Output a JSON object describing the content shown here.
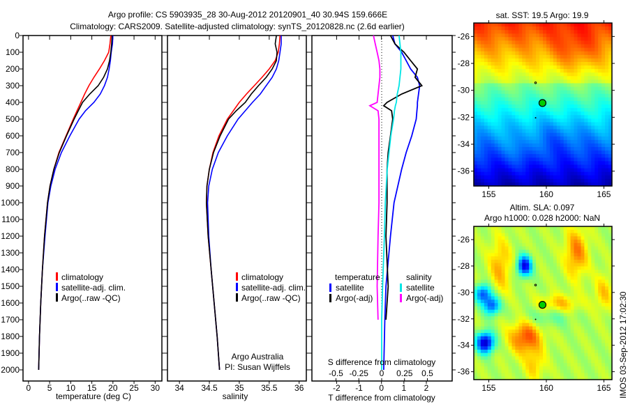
{
  "title_line1": "Argo profile: CS 5903935_28 30-Aug-2012 20120901_40 30.94S 159.666E",
  "title_line2": "Climatology: CARS2009. Satellite-adjusted climatology: synTS_20120828.nc (2.6d earlier)",
  "colors": {
    "climatology": "#ff0000",
    "satellite": "#0000ff",
    "argo": "#000000",
    "sal_satellite": "#00e5e5",
    "sal_argo": "#ff00ff"
  },
  "chart_data": [
    {
      "type": "line",
      "name": "temperature-profile",
      "xlabel": "temperature (deg C)",
      "ylabel": "",
      "xlim": [
        -1.3,
        31.6
      ],
      "ylim": [
        2065,
        0
      ],
      "xticks": [
        0,
        5,
        10,
        15,
        20,
        25,
        30
      ],
      "yticks": [
        0,
        100,
        200,
        300,
        400,
        500,
        600,
        700,
        800,
        900,
        1000,
        1100,
        1200,
        1300,
        1400,
        1500,
        1600,
        1700,
        1800,
        1900,
        2000
      ],
      "depth": [
        0,
        50,
        100,
        150,
        200,
        250,
        300,
        350,
        400,
        450,
        500,
        600,
        700,
        800,
        900,
        1000,
        1200,
        1400,
        1600,
        1800,
        2000
      ],
      "series": [
        {
          "name": "climatology",
          "color": "#ff0000",
          "values": [
            19.5,
            19.3,
            19,
            18,
            16.8,
            15.5,
            14.3,
            13.3,
            12.4,
            11.5,
            10.6,
            8.9,
            7.2,
            6,
            5.1,
            4.5,
            3.8,
            3.3,
            2.9,
            2.6,
            2.4
          ]
        },
        {
          "name": "satellite-adj. clim.",
          "color": "#0000ff",
          "values": [
            20,
            19.9,
            19.6,
            19.4,
            19.1,
            18.7,
            18,
            17,
            15.5,
            13.5,
            12,
            9.8,
            7.8,
            6.3,
            5.3,
            4.6,
            3.9,
            3.3,
            2.9,
            2.6,
            2.4
          ]
        },
        {
          "name": "Argo(..raw -QC)",
          "color": "#000000",
          "values": [
            19.8,
            19.7,
            19.5,
            19.2,
            18.7,
            17.8,
            16.5,
            14.5,
            12.8,
            11.8,
            10.8,
            9,
            7.3,
            6,
            5.1,
            4.5,
            3.8,
            3.3,
            2.9,
            2.6,
            2.4
          ]
        }
      ]
    },
    {
      "type": "line",
      "name": "salinity-profile",
      "xlabel": "salinity",
      "xlim": [
        33.8,
        36.12
      ],
      "ylim": [
        2065,
        0
      ],
      "xticks": [
        34,
        34.5,
        35,
        35.5,
        36
      ],
      "depth": [
        0,
        50,
        100,
        150,
        200,
        250,
        300,
        350,
        400,
        450,
        500,
        600,
        700,
        800,
        900,
        1000,
        1200,
        1400,
        1600,
        1800,
        2000
      ],
      "series": [
        {
          "name": "climatology",
          "color": "#ff0000",
          "values": [
            35.68,
            35.67,
            35.65,
            35.6,
            35.5,
            35.38,
            35.25,
            35.12,
            35.0,
            34.9,
            34.8,
            34.66,
            34.56,
            34.5,
            34.46,
            34.45,
            34.48,
            34.53,
            34.58,
            34.63,
            34.67
          ]
        },
        {
          "name": "satellite-adj. clim.",
          "color": "#0000ff",
          "values": [
            35.7,
            35.7,
            35.68,
            35.66,
            35.62,
            35.55,
            35.45,
            35.35,
            35.22,
            35.1,
            34.98,
            34.8,
            34.65,
            34.55,
            34.49,
            34.47,
            34.49,
            34.53,
            34.58,
            34.63,
            34.67
          ]
        },
        {
          "name": "Argo(..raw -QC)",
          "color": "#000000",
          "values": [
            35.62,
            35.6,
            35.63,
            35.62,
            35.55,
            35.45,
            35.32,
            35.2,
            35.1,
            34.95,
            34.82,
            34.68,
            34.57,
            34.5,
            34.46,
            34.45,
            34.48,
            34.53,
            34.58,
            34.63,
            34.67
          ]
        }
      ],
      "annotation": [
        "Argo Australia",
        "PI: Susan Wijffels"
      ]
    },
    {
      "type": "line",
      "name": "difference-profile",
      "xlabel": "T difference from climatology",
      "x2label": "S difference from climatology",
      "xlim": [
        -3.1,
        3.15
      ],
      "x2lim": [
        -0.5,
        0.5
      ],
      "xticks": [
        -2,
        -1,
        0,
        1,
        2
      ],
      "x2ticks": [
        -0.5,
        -0.25,
        0,
        0.25,
        0.5
      ],
      "x2ticklabels": [
        "-0.5",
        "-0.25",
        "0",
        "0.25",
        "0.5"
      ],
      "depth": [
        0,
        50,
        100,
        150,
        200,
        250,
        300,
        350,
        400,
        420,
        450,
        500,
        600,
        700,
        800,
        1000,
        1200,
        1500,
        1700,
        2000
      ],
      "series": [
        {
          "name": "temperature satellite",
          "axis": "T",
          "color": "#0000ff",
          "values": [
            0.5,
            0.6,
            0.9,
            1.1,
            1.3,
            1.6,
            1.7,
            1.65,
            1.6,
            1.6,
            1.58,
            1.55,
            1.35,
            1.1,
            0.9,
            0.56,
            0.4,
            0.2,
            0.15,
            0.1
          ]
        },
        {
          "name": "temperature Argo(-adj)",
          "axis": "T",
          "color": "#000000",
          "values": [
            0.4,
            0.6,
            1.0,
            1.3,
            1.6,
            1.5,
            1.8,
            0.9,
            0.25,
            0.1,
            0.45,
            0.5,
            0.4,
            0.3,
            0.25,
            0.25,
            0.2,
            0.3,
            0.2,
            null
          ]
        },
        {
          "name": "salinity satellite",
          "axis": "S",
          "color": "#00e5e5",
          "values": [
            0.19,
            0.2,
            0.21,
            0.21,
            0.21,
            0.2,
            0.19,
            0.17,
            0.16,
            0.15,
            0.14,
            0.13,
            0.1,
            0.08,
            0.06,
            0.04,
            0.03,
            0.01,
            0.0,
            0.0
          ]
        },
        {
          "name": "salinity Argo(-adj)",
          "axis": "S",
          "color": "#ff00ff",
          "values": [
            -0.09,
            -0.07,
            -0.05,
            -0.03,
            -0.02,
            -0.02,
            -0.03,
            -0.04,
            -0.05,
            -0.13,
            -0.04,
            -0.03,
            -0.03,
            -0.03,
            -0.03,
            -0.03,
            -0.04,
            -0.05,
            -0.04,
            null
          ]
        }
      ],
      "legend": {
        "temperature_head": "temperature",
        "salinity_head": "salinity",
        "t_sat": "satellite",
        "t_argo": "Argo(-adj)",
        "s_sat": "satellite",
        "s_argo": "Argo(-adj)"
      }
    },
    {
      "type": "heatmap",
      "name": "sst-map",
      "title": "sat. SST: 19.5 Argo: 19.9",
      "xlim": [
        153.7,
        165.7
      ],
      "ylim": [
        -37.1,
        -25
      ],
      "xticks": [
        155,
        160,
        165
      ],
      "yticks": [
        -26,
        -28,
        -30,
        -32,
        -34,
        -36
      ],
      "argo_position": [
        159.666,
        -30.94
      ]
    },
    {
      "type": "heatmap",
      "name": "sla-map",
      "title1": "Altim. SLA: 0.097",
      "title2": "Argo h1000: 0.028 h2000: NaN",
      "xlim": [
        153.7,
        165.7
      ],
      "ylim": [
        -36.6,
        -25
      ],
      "xticks": [
        155,
        160,
        165
      ],
      "yticks": [
        -26,
        -28,
        -30,
        -32,
        -34,
        -36
      ],
      "argo_position": [
        159.666,
        -30.94
      ]
    }
  ],
  "legend_profile": [
    "climatology",
    "satellite-adj. clim.",
    "Argo(..raw -QC)"
  ],
  "footer": "IMOS 03-Sep-2012 17:02:30"
}
